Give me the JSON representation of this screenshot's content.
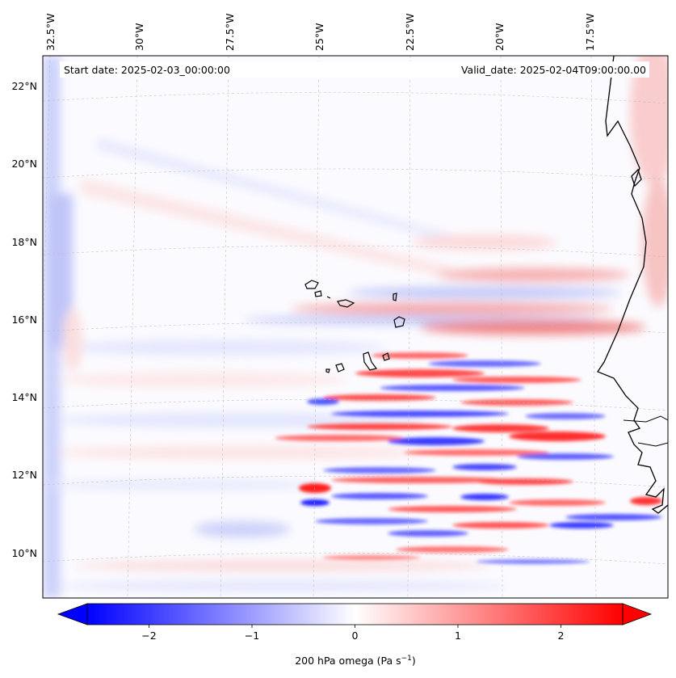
{
  "map": {
    "start_label": "Start date: 2025-02-03_00:00:00",
    "valid_label": "Valid_date: 2025-02-04T09:00:00.00",
    "lon_labels": [
      "32.5°W",
      "30°W",
      "27.5°W",
      "25°W",
      "22.5°W",
      "20°W",
      "17.5°W"
    ],
    "lon_values": [
      -32.5,
      -30,
      -27.5,
      -25,
      -22.5,
      -20,
      -17.5
    ],
    "lat_labels": [
      "22°N",
      "20°N",
      "18°N",
      "16°N",
      "14°N",
      "12°N",
      "10°N"
    ],
    "lat_values": [
      22,
      20,
      18,
      16,
      14,
      12,
      10
    ],
    "islands": "Cape Verde",
    "coast": "West Africa (Senegal / Mauritania)"
  },
  "colorbar": {
    "label": "200 hPa omega (Pa s",
    "label_sup": "−1",
    "label_close": ")",
    "ticks": [
      "−2",
      "−1",
      "0",
      "1",
      "2"
    ],
    "tick_values": [
      -2,
      -1,
      0,
      1,
      2
    ],
    "vmin": -2.6,
    "vmax": 2.6,
    "cmap": "bwr",
    "extend": "both"
  },
  "colors": {
    "negative": "#0000ff",
    "neutral": "#ffffff",
    "positive": "#ff0000"
  }
}
